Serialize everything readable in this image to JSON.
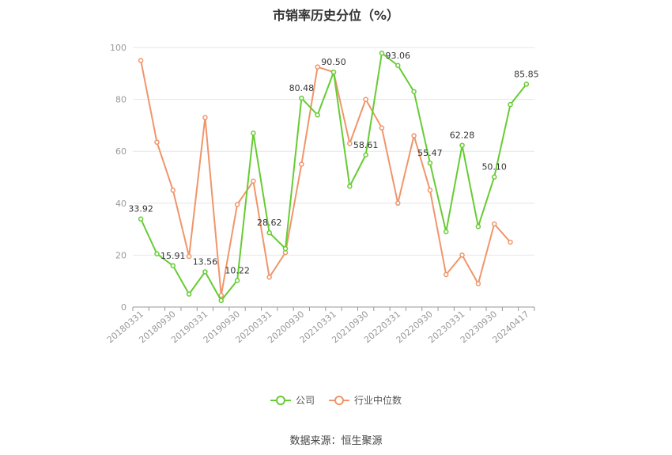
{
  "chart_data": {
    "type": "line",
    "title": "市销率历史分位（%）",
    "ylim": [
      0,
      100
    ],
    "yticks": [
      0,
      20,
      40,
      60,
      80,
      100
    ],
    "x_tick_labels": [
      "20180331",
      "20180930",
      "20190331",
      "20190930",
      "20200331",
      "20200930",
      "20210331",
      "20210930",
      "20220331",
      "20220930",
      "20230331",
      "20230930",
      "20240417"
    ],
    "grid": true,
    "legend_position": "bottom",
    "series": [
      {
        "name": "公司",
        "color": "#66cc33",
        "values": [
          33.92,
          20.5,
          15.91,
          5.0,
          13.56,
          2.5,
          10.22,
          67.0,
          28.62,
          22.5,
          80.48,
          74.0,
          90.5,
          46.5,
          58.61,
          97.8,
          93.06,
          83.0,
          55.47,
          29.0,
          62.28,
          31.0,
          50.1,
          78.0,
          85.85
        ],
        "labels": [
          "33.92",
          "",
          "15.91",
          "",
          "13.56",
          "",
          "10.22",
          "",
          "28.62",
          "",
          "80.48",
          "",
          "90.50",
          "",
          "58.61",
          "",
          "93.06",
          "",
          "55.47",
          "",
          "62.28",
          "",
          "50.10",
          "",
          "85.85"
        ]
      },
      {
        "name": "行业中位数",
        "color": "#f0956a",
        "values": [
          95.0,
          63.5,
          45.0,
          19.5,
          73.0,
          4.5,
          39.5,
          48.5,
          11.5,
          21.0,
          55.0,
          92.5,
          90.5,
          63.0,
          80.0,
          69.0,
          40.0,
          66.0,
          45.0,
          12.5,
          20.0,
          9.0,
          32.0,
          25.0
        ]
      }
    ]
  },
  "footer": {
    "source": "数据来源：恒生聚源"
  }
}
